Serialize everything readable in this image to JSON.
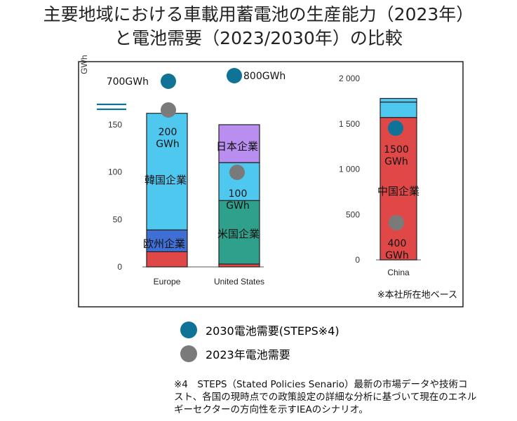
{
  "title": {
    "line1": "主要地域における車載用蓄電池の生産能力（2023年）",
    "line2": "と電池需要（2023/2030年）の比較"
  },
  "colors": {
    "eu": "#3f6fd4",
    "korea": "#4fc8f0",
    "us": "#2ea08c",
    "japan": "#b98ef0",
    "china": "#e04848",
    "demand2030": "#0e7397",
    "demand2023": "#7a7a7a",
    "frame": "#222222"
  },
  "legend": {
    "demand2030": "2030電池需要(STEPS※4)",
    "demand2023": "2023年電池需要"
  },
  "footnote": {
    "line1": "※4　STEPS（Stated Policies Senario）最新の市場データや技術コ",
    "line2": "スト、各国の現時点での政策設定の詳細な分析に基づいて現在のエネル",
    "line3": "ギーセクターの方向性を示すIEAのシナリオ。"
  },
  "note": "※本社所在地ベース",
  "chart_data": [
    {
      "type": "bar",
      "stacked": true,
      "ylabel": "GWh",
      "ylim": [
        0,
        175
      ],
      "yticks": [
        0,
        50,
        100,
        150
      ],
      "categories": [
        "Europe",
        "United States"
      ],
      "stacks": [
        {
          "category": "Europe",
          "segments": [
            {
              "name": "",
              "value": 16,
              "color_key": "china"
            },
            {
              "name": "欧州企業",
              "value": 23,
              "color_key": "eu"
            },
            {
              "name": "韓国企業",
              "value": 123,
              "color_key": "korea"
            }
          ]
        },
        {
          "category": "United States",
          "segments": [
            {
              "name": "",
              "value": 3,
              "color_key": "china"
            },
            {
              "name": "米国企業",
              "value": 67,
              "color_key": "us"
            },
            {
              "name": "",
              "value": 40,
              "color_key": "korea"
            },
            {
              "name": "日本企業",
              "value": 40,
              "color_key": "japan"
            }
          ]
        }
      ],
      "demand_2030": [
        {
          "category": "Europe",
          "label": "700GWh",
          "value": 700,
          "off_scale": true
        },
        {
          "category": "United States",
          "label": "800GWh",
          "value": 800,
          "off_scale": true
        }
      ],
      "demand_2023": [
        {
          "category": "Europe",
          "label": "200 GWh",
          "value": 200
        },
        {
          "category": "United States",
          "label": "100 GWh",
          "value": 100
        }
      ]
    },
    {
      "type": "bar",
      "stacked": true,
      "ylim": [
        0,
        2000
      ],
      "yticks": [
        0,
        500,
        1000,
        1500,
        2000
      ],
      "ytick_labels": [
        "0",
        "500",
        "1 000",
        "1 500",
        "2 000"
      ],
      "categories": [
        "China"
      ],
      "stacks": [
        {
          "category": "China",
          "segments": [
            {
              "name": "中国企業",
              "value": 1570,
              "color_key": "china"
            },
            {
              "name": "",
              "value": 170,
              "color_key": "korea"
            },
            {
              "name": "",
              "value": 40,
              "color_key": "korea"
            }
          ]
        }
      ],
      "demand_2030": [
        {
          "category": "China",
          "label": "1500 GWh",
          "value": 1500
        }
      ],
      "demand_2023": [
        {
          "category": "China",
          "label": "400 GWh",
          "value": 400
        }
      ]
    }
  ]
}
